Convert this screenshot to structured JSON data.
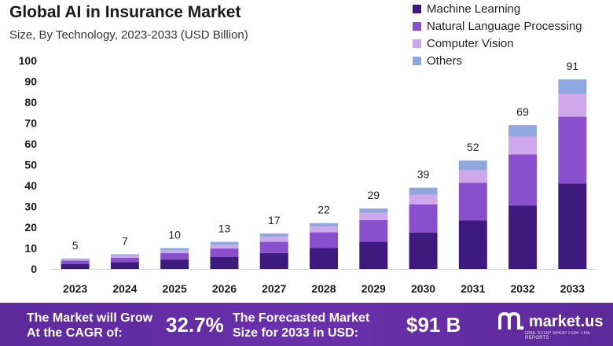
{
  "header": {
    "title": "Global AI in Insurance Market",
    "subtitle": "Size, By Technology, 2023-2033 (USD Billion)"
  },
  "colors": {
    "machine_learning": "#3f1a7e",
    "nlp": "#8a4fcc",
    "computer_vision": "#cfa8ec",
    "others": "#8fa6df",
    "footer": "#6a30ab"
  },
  "chart_data": {
    "type": "bar",
    "stacked": true,
    "title": "Global AI in Insurance Market",
    "subtitle": "Size, By Technology, 2023-2033 (USD Billion)",
    "categories": [
      "2023",
      "2024",
      "2025",
      "2026",
      "2027",
      "2028",
      "2029",
      "2030",
      "2031",
      "2032",
      "2033"
    ],
    "series": [
      {
        "name": "Machine Learning",
        "values": [
          2.4,
          3.2,
          4.5,
          5.8,
          7.6,
          10,
          13,
          17.5,
          23.2,
          30.5,
          41
        ]
      },
      {
        "name": "Natural Language Processing",
        "values": [
          1.6,
          2.2,
          3.1,
          4.0,
          5.4,
          7.6,
          10.4,
          13.5,
          18.2,
          24.5,
          32
        ]
      },
      {
        "name": "Computer Vision",
        "values": [
          0.6,
          0.9,
          1.3,
          1.9,
          2.5,
          2.7,
          3.6,
          4.6,
          6.0,
          8.5,
          11
        ]
      },
      {
        "name": "Others",
        "values": [
          0.4,
          0.7,
          1.1,
          1.3,
          1.5,
          1.7,
          2.0,
          3.4,
          4.6,
          5.5,
          7
        ]
      }
    ],
    "totals": [
      "5",
      "7",
      "10",
      "13",
      "17",
      "22",
      "29",
      "39",
      "52",
      "69",
      "91"
    ],
    "y_ticks": [
      "0",
      "10",
      "20",
      "30",
      "40",
      "50",
      "60",
      "70",
      "80",
      "90",
      "100"
    ],
    "ylim": [
      0,
      100
    ],
    "xlabel": "",
    "ylabel": "",
    "legend": "top-right"
  },
  "footer": {
    "cagr_text_line1": "The Market will Grow",
    "cagr_text_line2": "At the CAGR of:",
    "cagr_value": "32.7%",
    "forecast_text_line1": "The Forecasted Market",
    "forecast_text_line2": "Size for 2033 in USD:",
    "forecast_value": "$91 B",
    "brand": "market.us",
    "brand_tagline": "ONE STOP SHOP FOR THE REPORTS"
  }
}
